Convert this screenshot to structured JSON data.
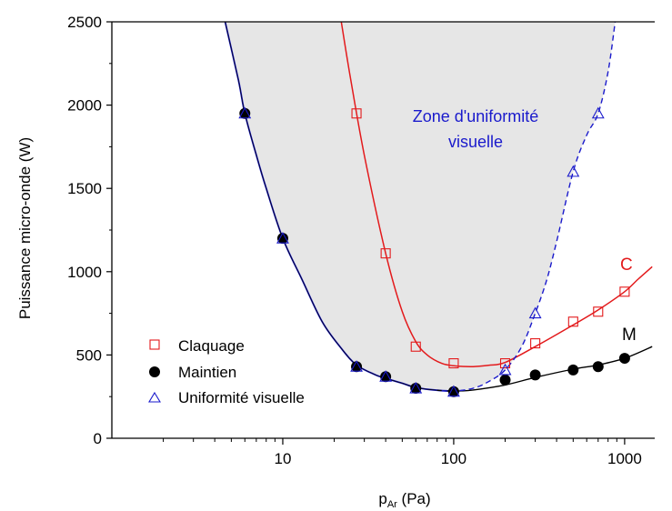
{
  "chart_data": {
    "type": "scatter",
    "xlabel_main": "p",
    "xlabel_sub": "Ar",
    "xlabel_unit": " (Pa)",
    "ylabel": "Puissance micro-onde (W)",
    "x_scale": "log",
    "xlim": [
      1,
      1500
    ],
    "ylim": [
      0,
      2500
    ],
    "x_ticks": [
      10,
      100,
      1000
    ],
    "x_tick_labels": [
      "10",
      "100",
      "1000"
    ],
    "y_ticks": [
      0,
      500,
      1000,
      1500,
      2000,
      2500
    ],
    "y_tick_labels": [
      "0",
      "500",
      "1000",
      "1500",
      "2000",
      "2500"
    ],
    "grid": false,
    "legend_position": "bottom-left",
    "zone_label_line1": "Zone d'uniformité",
    "zone_label_line2": "visuelle",
    "curve_label_c": "C",
    "curve_label_m": "M",
    "colors": {
      "claquage": "#e31a1c",
      "maintien": "#000000",
      "uniformite": "#1a1acc",
      "zone_fill": "#e6e6e6"
    },
    "series": [
      {
        "name": "Claquage",
        "marker": "square-open",
        "points": [
          [
            27,
            1950
          ],
          [
            40,
            1110
          ],
          [
            60,
            550
          ],
          [
            100,
            450
          ],
          [
            200,
            450
          ],
          [
            300,
            570
          ],
          [
            500,
            700
          ],
          [
            700,
            760
          ],
          [
            1000,
            880
          ]
        ]
      },
      {
        "name": "Maintien",
        "marker": "circle-filled",
        "points": [
          [
            6,
            1950
          ],
          [
            10,
            1200
          ],
          [
            27,
            430
          ],
          [
            40,
            370
          ],
          [
            60,
            300
          ],
          [
            100,
            280
          ],
          [
            200,
            350
          ],
          [
            300,
            380
          ],
          [
            500,
            410
          ],
          [
            700,
            430
          ],
          [
            1000,
            480
          ]
        ]
      },
      {
        "name": "Uniformité visuelle",
        "marker": "triangle-open",
        "points": [
          [
            6,
            1950
          ],
          [
            10,
            1200
          ],
          [
            27,
            430
          ],
          [
            40,
            370
          ],
          [
            60,
            300
          ],
          [
            100,
            280
          ],
          [
            200,
            410
          ],
          [
            300,
            750
          ],
          [
            500,
            1600
          ],
          [
            700,
            1950
          ]
        ]
      }
    ],
    "fit_curves": {
      "claquage": [
        [
          22,
          2500
        ],
        [
          25,
          2150
        ],
        [
          30,
          1700
        ],
        [
          40,
          1110
        ],
        [
          50,
          760
        ],
        [
          60,
          580
        ],
        [
          70,
          500
        ],
        [
          85,
          450
        ],
        [
          100,
          435
        ],
        [
          130,
          430
        ],
        [
          160,
          438
        ],
        [
          200,
          455
        ],
        [
          300,
          550
        ],
        [
          500,
          680
        ],
        [
          700,
          770
        ],
        [
          1000,
          880
        ],
        [
          1200,
          955
        ],
        [
          1450,
          1030
        ]
      ],
      "maintien": [
        [
          4.6,
          2500
        ],
        [
          5.5,
          2150
        ],
        [
          6,
          1950
        ],
        [
          7,
          1700
        ],
        [
          8,
          1500
        ],
        [
          10,
          1200
        ],
        [
          13,
          950
        ],
        [
          17,
          700
        ],
        [
          22,
          540
        ],
        [
          27,
          440
        ],
        [
          35,
          380
        ],
        [
          40,
          360
        ],
        [
          50,
          330
        ],
        [
          60,
          305
        ],
        [
          80,
          288
        ],
        [
          100,
          283
        ],
        [
          130,
          290
        ],
        [
          200,
          320
        ],
        [
          300,
          365
        ],
        [
          500,
          415
        ],
        [
          700,
          440
        ],
        [
          1000,
          480
        ],
        [
          1450,
          550
        ]
      ],
      "uniformite_dashed": [
        [
          85,
          285
        ],
        [
          100,
          283
        ],
        [
          130,
          300
        ],
        [
          160,
          340
        ],
        [
          200,
          410
        ],
        [
          250,
          550
        ],
        [
          300,
          750
        ],
        [
          350,
          950
        ],
        [
          400,
          1180
        ],
        [
          500,
          1600
        ],
        [
          600,
          1820
        ],
        [
          700,
          1950
        ],
        [
          800,
          2200
        ],
        [
          880,
          2500
        ]
      ]
    }
  }
}
